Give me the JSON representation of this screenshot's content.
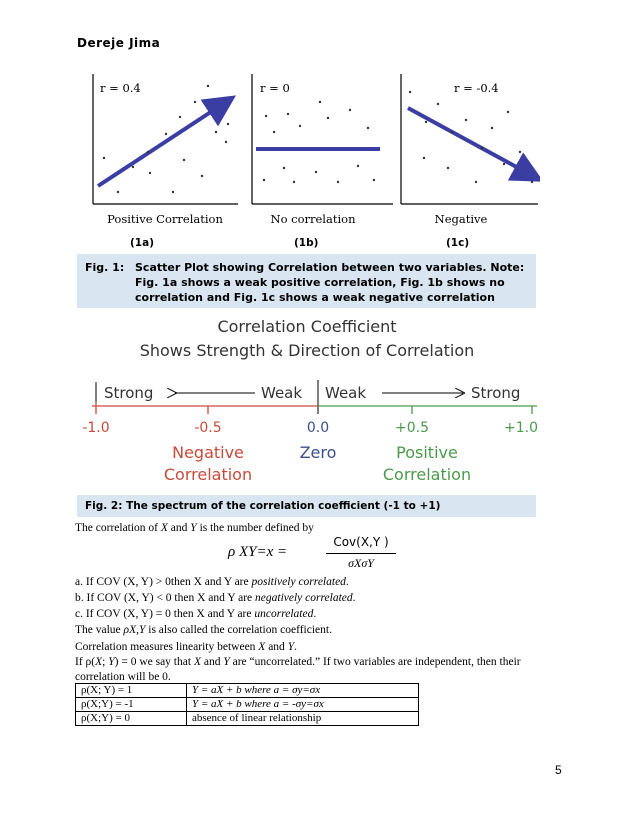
{
  "header": "Dereje Jima",
  "figure1": {
    "panels": [
      {
        "r_label": "r = 0.4",
        "title": "Positive Correlation",
        "tag": "(1a)"
      },
      {
        "r_label": "r = 0",
        "title": "No correlation",
        "tag": "(1b)"
      },
      {
        "r_label": "r = -0.4",
        "title": "Negative",
        "tag": "(1c)"
      }
    ],
    "caption_label": "Fig. 1:",
    "caption_text": "Scatter Plot showing Correlation between two variables. Note: Fig. 1a shows a weak positive correlation, Fig. 1b shows no correlation and Fig. 1c shows a weak negative correlation"
  },
  "figure2": {
    "title_line1": "Correlation Coefficient",
    "title_line2": "Shows Strength & Direction of Correlation",
    "left_strong": "Strong",
    "left_weak": "Weak",
    "right_weak": "Weak",
    "right_strong": "Strong",
    "ticks": [
      "-1.0",
      "-0.5",
      "0.0",
      "+0.5",
      "+1.0"
    ],
    "negative_line1": "Negative",
    "negative_line2": "Correlation",
    "zero": "Zero",
    "positive_line1": "Positive",
    "positive_line2": "Correlation",
    "caption": "Fig. 2:  The spectrum of the correlation coefficient (-1 to +1)"
  },
  "body": {
    "intro_pre": "The correlation of ",
    "intro_x": "X",
    "intro_mid": " and ",
    "intro_y": "Y",
    "intro_post": " is the number defined by",
    "formula_lhs": "ρ XY=x =",
    "formula_num": "Cov(X,Y )",
    "formula_den": "σXσY",
    "item_a_pre": "a. If COV (X, Y) > 0then X and Y are ",
    "item_a_em": "positively correlated",
    "item_b_pre": "b. If COV (X, Y) < 0 then X and Y are ",
    "item_b_em": "negatively correlated",
    "item_c_pre": "c. If COV (X, Y) = 0 then X and Y are ",
    "item_c_em": "uncorrelated",
    "period": ".",
    "value_pre": "The value ",
    "value_em": "ρX,Y",
    "value_post": " is also called the correlation coefficient.",
    "measures_pre": "Correlation measures linearity between ",
    "measures_x": "X",
    "measures_mid": " and ",
    "measures_y": "Y",
    "para_line1_a": "If ρ(",
    "para_line1_b": "X",
    "para_line1_c": "; ",
    "para_line1_d": "Y",
    "para_line1_e": ") = 0 we say that ",
    "para_line1_f": "X",
    "para_line1_g": " and ",
    "para_line1_h": "Y",
    "para_line1_i": " are “uncorrelated.” If two variables are independent, then their",
    "para_line2": "correlation will be 0."
  },
  "table": {
    "rows": [
      {
        "c1": "ρ(X; Y) = 1",
        "c2": "Y = aX + b where a = σy=σx"
      },
      {
        "c1": "ρ(X;Y) = -1",
        "c2": "Y = aX + b where a = -σy=σx"
      },
      {
        "c1": "ρ(X;Y) = 0",
        "c2": "absence of linear relationship"
      }
    ]
  },
  "page_number": "5"
}
